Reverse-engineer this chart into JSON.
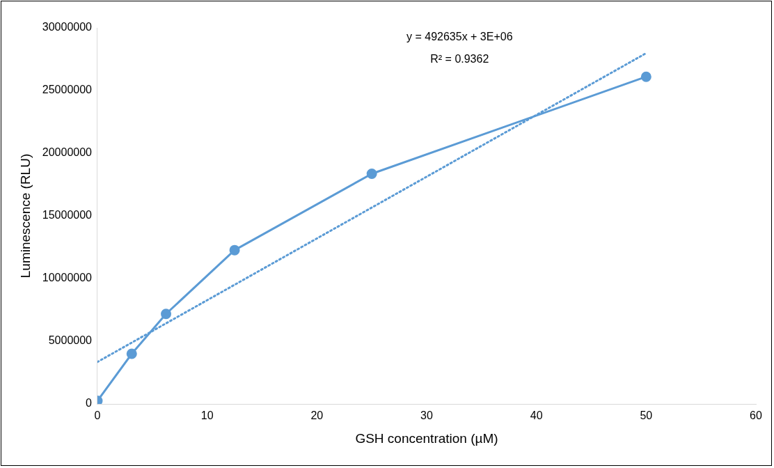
{
  "chart_data": {
    "type": "line",
    "xlabel": "GSH concentration (µM)",
    "ylabel": "Luminescence (RLU)",
    "xlim": [
      0,
      60
    ],
    "xticks": [
      0,
      10,
      20,
      30,
      40,
      50,
      60
    ],
    "ylim": [
      0,
      30000000
    ],
    "yticks": [
      0,
      5000000,
      10000000,
      15000000,
      20000000,
      25000000,
      30000000
    ],
    "grid": false,
    "legend": false,
    "series": [
      {
        "x": [
          0,
          3.125,
          6.25,
          12.5,
          25,
          50
        ],
        "values": [
          250000,
          4000000,
          7180000,
          12270000,
          18360000,
          26100000
        ],
        "color": "#5b9bd5",
        "marker": "circle",
        "line_style": "solid"
      },
      {
        "x": [
          0,
          50
        ],
        "values": [
          3350000,
          27980000
        ],
        "color": "#5b9bd5",
        "marker": "none",
        "line_style": "dotted"
      }
    ],
    "annotations": [
      "y = 492635x + 3E+06",
      "R² = 0.9362"
    ]
  }
}
